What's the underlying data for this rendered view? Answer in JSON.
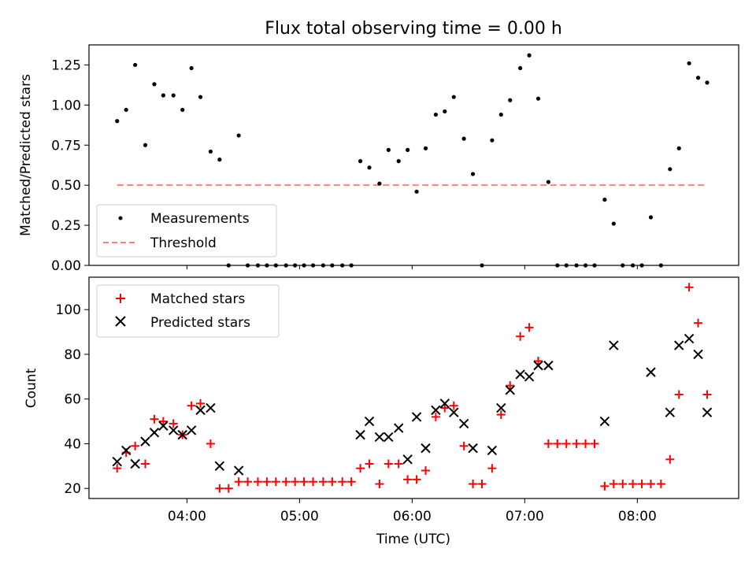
{
  "figure": {
    "title": "Flux total observing time = 0.00 h",
    "xlabel": "Time (UTC)",
    "x_tick_labels": [
      "04:00",
      "05:00",
      "06:00",
      "07:00",
      "08:00"
    ]
  },
  "chart_data": [
    {
      "type": "scatter",
      "title": "Flux total observing time = 0.00 h",
      "ylabel": "Matched/Predicted stars",
      "xlabel": "",
      "x_range_hours": [
        3.13,
        8.9
      ],
      "ylim": [
        0,
        1.375
      ],
      "y_ticks": [
        0.0,
        0.25,
        0.5,
        0.75,
        1.0,
        1.25
      ],
      "y_tick_labels": [
        "0.00",
        "0.25",
        "0.50",
        "0.75",
        "1.00",
        "1.25"
      ],
      "x_ticks_hours": [
        4,
        5,
        6,
        7,
        8
      ],
      "legend": {
        "placement": "lower-left",
        "entries": [
          "Measurements",
          "Threshold"
        ]
      },
      "series": [
        {
          "name": "Measurements",
          "marker": "dot",
          "color": "#000000",
          "x_hours": [
            3.38,
            3.46,
            3.54,
            3.63,
            3.71,
            3.79,
            3.88,
            3.96,
            4.04,
            4.12,
            4.21,
            4.29,
            4.37,
            4.46,
            4.54,
            4.63,
            4.71,
            4.79,
            4.88,
            4.96,
            5.04,
            5.12,
            5.21,
            5.29,
            5.38,
            5.46,
            5.54,
            5.62,
            5.71,
            5.79,
            5.88,
            5.96,
            6.04,
            6.12,
            6.21,
            6.29,
            6.37,
            6.46,
            6.54,
            6.62,
            6.71,
            6.79,
            6.87,
            6.96,
            7.04,
            7.12,
            7.21,
            7.29,
            7.37,
            7.46,
            7.54,
            7.62,
            7.71,
            7.79,
            7.87,
            7.96,
            8.04,
            8.12,
            8.21,
            8.29,
            8.37,
            8.46,
            8.54,
            8.62
          ],
          "y": [
            0.9,
            0.97,
            1.25,
            0.75,
            1.13,
            1.06,
            1.06,
            0.97,
            1.23,
            1.05,
            0.71,
            0.66,
            0.0,
            0.81,
            0.0,
            0.0,
            0.0,
            0.0,
            0.0,
            0.0,
            0.0,
            0.0,
            0.0,
            0.0,
            0.0,
            0.0,
            0.65,
            0.61,
            0.51,
            0.72,
            0.65,
            0.72,
            0.46,
            0.73,
            0.94,
            0.96,
            1.05,
            0.79,
            0.57,
            0.0,
            0.78,
            0.94,
            1.03,
            1.23,
            1.31,
            1.04,
            0.52,
            0.0,
            0.0,
            0.0,
            0.0,
            0.0,
            0.41,
            0.26,
            0.0,
            0.0,
            0.0,
            0.3,
            0.0,
            0.6,
            0.73,
            1.26,
            1.17,
            1.14
          ]
        },
        {
          "name": "Threshold",
          "style": "dashed",
          "color": "#ff7f7f",
          "x_hours": [
            3.38,
            8.62
          ],
          "y": [
            0.5,
            0.5
          ]
        }
      ]
    },
    {
      "type": "scatter",
      "title": "",
      "ylabel": "Count",
      "xlabel": "Time (UTC)",
      "x_range_hours": [
        3.13,
        8.9
      ],
      "ylim": [
        15.5,
        114.5
      ],
      "y_ticks": [
        20,
        40,
        60,
        80,
        100
      ],
      "y_tick_labels": [
        "20",
        "40",
        "60",
        "80",
        "100"
      ],
      "x_ticks_hours": [
        4,
        5,
        6,
        7,
        8
      ],
      "x_tick_labels": [
        "04:00",
        "05:00",
        "06:00",
        "07:00",
        "08:00"
      ],
      "legend": {
        "placement": "upper-left",
        "entries": [
          "Matched stars",
          "Predicted stars"
        ]
      },
      "series": [
        {
          "name": "Matched stars",
          "marker": "plus",
          "color": "#ff0000",
          "x_hours": [
            3.38,
            3.46,
            3.54,
            3.63,
            3.71,
            3.79,
            3.88,
            3.96,
            4.04,
            4.12,
            4.21,
            4.29,
            4.37,
            4.46,
            4.54,
            4.63,
            4.71,
            4.79,
            4.88,
            4.96,
            5.04,
            5.12,
            5.21,
            5.29,
            5.38,
            5.46,
            5.54,
            5.62,
            5.71,
            5.79,
            5.88,
            5.96,
            6.04,
            6.12,
            6.21,
            6.29,
            6.37,
            6.46,
            6.54,
            6.62,
            6.71,
            6.79,
            6.87,
            6.96,
            7.04,
            7.12,
            7.21,
            7.29,
            7.37,
            7.46,
            7.54,
            7.62,
            7.71,
            7.79,
            7.87,
            7.96,
            8.04,
            8.12,
            8.21,
            8.29,
            8.37,
            8.46,
            8.54,
            8.62
          ],
          "y": [
            29,
            36,
            39,
            31,
            51,
            50,
            49,
            44,
            57,
            58,
            40,
            20,
            20,
            23,
            23,
            23,
            23,
            23,
            23,
            23,
            23,
            23,
            23,
            23,
            23,
            23,
            29,
            31,
            22,
            31,
            31,
            24,
            24,
            28,
            52,
            56,
            57,
            39,
            22,
            22,
            29,
            53,
            66,
            88,
            92,
            77,
            40,
            40,
            40,
            40,
            40,
            40,
            21,
            22,
            22,
            22,
            22,
            22,
            22,
            33,
            62,
            110,
            94,
            62
          ]
        },
        {
          "name": "Predicted stars",
          "marker": "x",
          "color": "#000000",
          "x_hours": [
            3.38,
            3.46,
            3.54,
            3.63,
            3.71,
            3.79,
            3.88,
            3.96,
            4.04,
            4.12,
            4.21,
            4.29,
            4.46,
            5.54,
            5.62,
            5.71,
            5.79,
            5.88,
            5.96,
            6.04,
            6.12,
            6.21,
            6.29,
            6.37,
            6.46,
            6.54,
            6.71,
            6.79,
            6.87,
            6.96,
            7.04,
            7.12,
            7.21,
            7.71,
            7.79,
            8.12,
            8.29,
            8.37,
            8.46,
            8.54,
            8.62
          ],
          "y": [
            32,
            37,
            31,
            41,
            45,
            48,
            46,
            44,
            46,
            55,
            56,
            30,
            28,
            44,
            50,
            43,
            43,
            47,
            33,
            52,
            38,
            55,
            58,
            54,
            49,
            38,
            37,
            56,
            64,
            71,
            70,
            75,
            75,
            50,
            84,
            72,
            54,
            84,
            87,
            80,
            54
          ]
        }
      ]
    }
  ]
}
